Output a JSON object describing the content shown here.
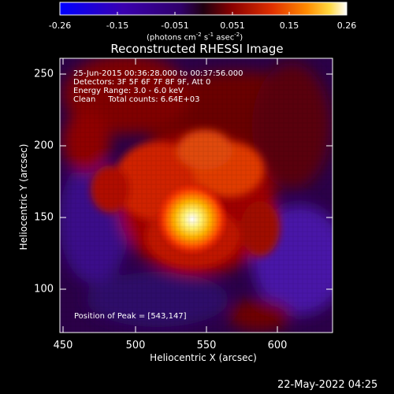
{
  "colorbar": {
    "ticks": [
      "-0.26",
      "-0.15",
      "-0.051",
      "0.051",
      "0.15",
      "0.26"
    ],
    "units_main": "(photons cm",
    "units_sup1": "-2",
    "units_mid": " s",
    "units_sup2": "-1",
    "units_end": " asec",
    "units_sup3": "-2",
    "units_close": ")"
  },
  "title": "Reconstructed RHESSI Image",
  "info_lines": [
    "25-Jun-2015 00:36:28.000 to 00:37:56.000",
    "Detectors: 3F 5F 6F 7F 8F 9F, Att 0",
    "Energy Range: 3.0 - 6.0 keV",
    "Clean     Total counts: 6.64E+03"
  ],
  "peak_text": "Position of Peak = [543,147]",
  "x_axis": {
    "label": "Heliocentric X (arcsec)",
    "ticks": [
      "450",
      "500",
      "550",
      "600"
    ]
  },
  "y_axis": {
    "label": "Heliocentric Y (arcsec)",
    "ticks": [
      "100",
      "150",
      "200",
      "250"
    ]
  },
  "footer_date": "22-May-2022 04:25",
  "colors": {
    "background": "#000000",
    "text": "#ffffff"
  }
}
